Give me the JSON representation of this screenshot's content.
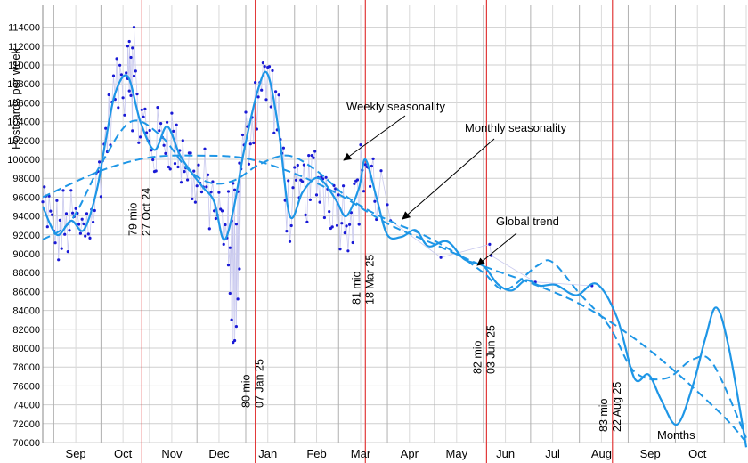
{
  "chart_data": {
    "type": "line",
    "ylabel": "Postcards per week",
    "ylim": [
      70000,
      115000
    ],
    "y_ticks": [
      70000,
      72000,
      74000,
      76000,
      78000,
      80000,
      82000,
      84000,
      86000,
      88000,
      90000,
      92000,
      94000,
      96000,
      98000,
      100000,
      102000,
      104000,
      106000,
      108000,
      110000,
      112000,
      114000
    ],
    "x_range": [
      "2024-08-25",
      "2025-11-15"
    ],
    "grid": true,
    "months": [
      {
        "label": "Sep",
        "date": "2024-09-15"
      },
      {
        "label": "Oct",
        "date": "2024-10-15"
      },
      {
        "label": "Nov",
        "date": "2024-11-15"
      },
      {
        "label": "Dec",
        "date": "2024-12-15"
      },
      {
        "label": "Jan",
        "date": "2025-01-15"
      },
      {
        "label": "Feb",
        "date": "2025-02-15"
      },
      {
        "label": "Mar",
        "date": "2025-03-15"
      },
      {
        "label": "Apr",
        "date": "2025-04-15"
      },
      {
        "label": "May",
        "date": "2025-05-15"
      },
      {
        "label": "Jun",
        "date": "2025-06-15"
      },
      {
        "label": "Jul",
        "date": "2025-07-15"
      },
      {
        "label": "Aug",
        "date": "2025-08-15"
      },
      {
        "label": "Sep",
        "date": "2025-09-15"
      },
      {
        "label": "Oct",
        "date": "2025-10-15"
      }
    ],
    "milestones": [
      {
        "count": "79 mio",
        "date_label": "27 Oct 24",
        "date": "2024-10-27"
      },
      {
        "count": "80 mio",
        "date_label": "07 Jan 25",
        "date": "2025-01-07"
      },
      {
        "count": "81 mio",
        "date_label": "18 Mar 25",
        "date": "2025-03-18"
      },
      {
        "count": "82 mio",
        "date_label": "03 Jun 25",
        "date": "2025-06-03"
      },
      {
        "count": "83 mio",
        "date_label": "22 Aug 25",
        "date": "2025-08-22"
      }
    ],
    "annotations": [
      {
        "text": "Weekly seasonality"
      },
      {
        "text": "Monthly seasonality"
      },
      {
        "text": "Global trend"
      },
      {
        "text": "Months"
      }
    ],
    "series": [
      {
        "role": "weekly",
        "points": [
          [
            "2024-08-25",
            95000
          ],
          [
            "2024-09-03",
            92000
          ],
          [
            "2024-09-12",
            93500
          ],
          [
            "2024-09-20",
            92500
          ],
          [
            "2024-09-28",
            96500
          ],
          [
            "2024-10-04",
            102000
          ],
          [
            "2024-10-10",
            107000
          ],
          [
            "2024-10-18",
            108800
          ],
          [
            "2024-10-26",
            104000
          ],
          [
            "2024-11-04",
            101000
          ],
          [
            "2024-11-12",
            103500
          ],
          [
            "2024-11-20",
            100500
          ],
          [
            "2024-11-28",
            98500
          ],
          [
            "2024-12-05",
            97000
          ],
          [
            "2024-12-12",
            95500
          ],
          [
            "2024-12-18",
            91500
          ],
          [
            "2024-12-24",
            94500
          ],
          [
            "2024-12-31",
            101000
          ],
          [
            "2025-01-09",
            107500
          ],
          [
            "2025-01-15",
            109000
          ],
          [
            "2025-01-22",
            103000
          ],
          [
            "2025-01-29",
            94000
          ],
          [
            "2025-02-06",
            96500
          ],
          [
            "2025-02-14",
            98000
          ],
          [
            "2025-02-20",
            97500
          ],
          [
            "2025-02-28",
            95500
          ],
          [
            "2025-03-06",
            94000
          ],
          [
            "2025-03-14",
            97000
          ],
          [
            "2025-03-18",
            100000
          ],
          [
            "2025-03-25",
            96000
          ],
          [
            "2025-04-01",
            92000
          ],
          [
            "2025-04-10",
            91800
          ],
          [
            "2025-04-19",
            92500
          ],
          [
            "2025-04-27",
            90800
          ],
          [
            "2025-05-09",
            91300
          ],
          [
            "2025-05-20",
            89400
          ],
          [
            "2025-06-01",
            88700
          ],
          [
            "2025-06-10",
            86800
          ],
          [
            "2025-06-19",
            86100
          ],
          [
            "2025-06-28",
            87200
          ],
          [
            "2025-07-07",
            86600
          ],
          [
            "2025-07-17",
            86700
          ],
          [
            "2025-07-30",
            85600
          ],
          [
            "2025-08-12",
            86800
          ],
          [
            "2025-08-25",
            83200
          ],
          [
            "2025-09-05",
            76800
          ],
          [
            "2025-09-14",
            77200
          ],
          [
            "2025-09-22",
            74500
          ],
          [
            "2025-10-02",
            71900
          ],
          [
            "2025-10-12",
            76000
          ],
          [
            "2025-10-20",
            81000
          ],
          [
            "2025-10-27",
            84300
          ],
          [
            "2025-11-04",
            80000
          ],
          [
            "2025-11-15",
            69500
          ]
        ]
      },
      {
        "role": "monthly",
        "points": [
          [
            "2024-08-25",
            91500
          ],
          [
            "2024-09-12",
            93500
          ],
          [
            "2024-10-01",
            99500
          ],
          [
            "2024-10-20",
            104000
          ],
          [
            "2024-11-08",
            102500
          ],
          [
            "2024-11-25",
            99000
          ],
          [
            "2024-12-10",
            97500
          ],
          [
            "2024-12-25",
            97800
          ],
          [
            "2025-01-10",
            99500
          ],
          [
            "2025-01-28",
            100400
          ],
          [
            "2025-02-15",
            98800
          ],
          [
            "2025-03-05",
            96200
          ],
          [
            "2025-03-20",
            94600
          ],
          [
            "2025-04-05",
            93300
          ],
          [
            "2025-04-25",
            91900
          ],
          [
            "2025-05-15",
            90000
          ],
          [
            "2025-06-01",
            88000
          ],
          [
            "2025-06-15",
            86200
          ],
          [
            "2025-07-05",
            88700
          ],
          [
            "2025-07-15",
            89100
          ],
          [
            "2025-08-01",
            85800
          ],
          [
            "2025-08-20",
            82300
          ],
          [
            "2025-09-05",
            77500
          ],
          [
            "2025-09-25",
            76800
          ],
          [
            "2025-10-12",
            78800
          ],
          [
            "2025-10-25",
            78300
          ],
          [
            "2025-11-15",
            70500
          ]
        ]
      },
      {
        "role": "trend",
        "points": [
          [
            "2024-08-25",
            96000
          ],
          [
            "2024-10-01",
            98800
          ],
          [
            "2024-11-01",
            100200
          ],
          [
            "2024-12-01",
            100400
          ],
          [
            "2025-01-01",
            100100
          ],
          [
            "2025-02-01",
            98500
          ],
          [
            "2025-03-01",
            96300
          ],
          [
            "2025-04-01",
            93200
          ],
          [
            "2025-05-01",
            91000
          ],
          [
            "2025-06-01",
            88700
          ],
          [
            "2025-07-01",
            86900
          ],
          [
            "2025-08-01",
            84700
          ],
          [
            "2025-09-01",
            81500
          ],
          [
            "2025-10-01",
            77500
          ],
          [
            "2025-11-01",
            72700
          ],
          [
            "2025-11-15",
            70000
          ]
        ]
      }
    ]
  }
}
